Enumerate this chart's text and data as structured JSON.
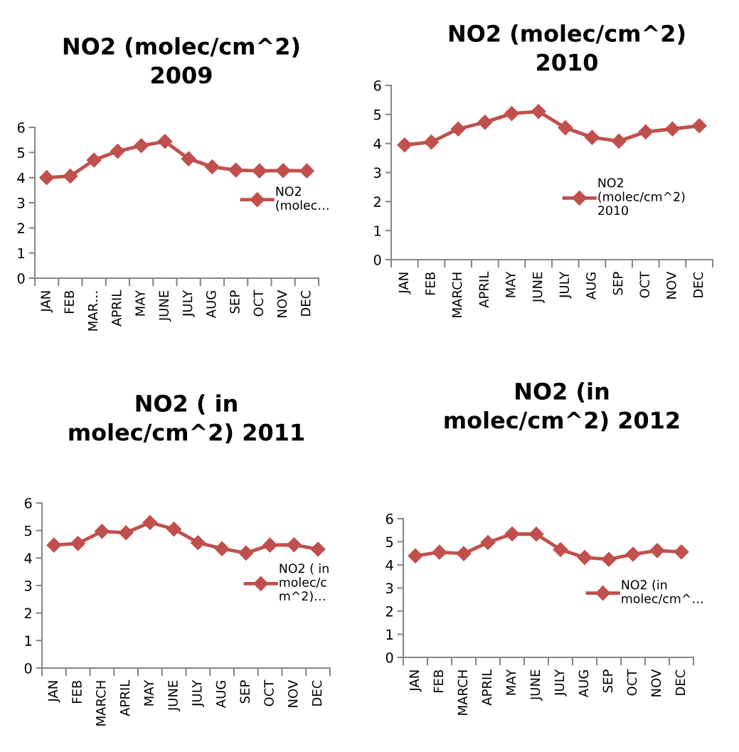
{
  "chart_data": [
    {
      "type": "line",
      "title": "NO2 (molec/cm^2)\n2009",
      "categories": [
        "JAN",
        "FEB",
        "MAR…",
        "APRIL",
        "MAY",
        "JUNE",
        "JULY",
        "AUG",
        "SEP",
        "OCT",
        "NOV",
        "DEC"
      ],
      "series": [
        {
          "name": "NO2\n(molec…",
          "color": "#c0504d",
          "values": [
            4.0,
            4.06,
            4.7,
            5.05,
            5.27,
            5.44,
            4.75,
            4.43,
            4.3,
            4.27,
            4.28,
            4.27
          ]
        }
      ],
      "ylim": [
        0,
        6
      ],
      "yticks": [
        0,
        1,
        2,
        3,
        4,
        5,
        6
      ],
      "legend": "right",
      "marker": "diamond",
      "line_style": "solid",
      "grid": false
    },
    {
      "type": "line",
      "title": "NO2 (molec/cm^2)\n2010",
      "categories": [
        "JAN",
        "FEB",
        "MARCH",
        "APRIL",
        "MAY",
        "JUNE",
        "JULY",
        "AUG",
        "SEP",
        "OCT",
        "NOV",
        "DEC"
      ],
      "series": [
        {
          "name": "NO2\n(molec/cm^2)\n2010",
          "color": "#c0504d",
          "values": [
            3.95,
            4.05,
            4.5,
            4.73,
            5.03,
            5.1,
            4.54,
            4.21,
            4.08,
            4.4,
            4.5,
            4.61
          ]
        }
      ],
      "ylim": [
        0,
        6
      ],
      "yticks": [
        0,
        1,
        2,
        3,
        4,
        5,
        6
      ],
      "legend": "right",
      "marker": "diamond",
      "line_style": "solid",
      "grid": false
    },
    {
      "type": "line",
      "title": "NO2 ( in\nmolec/cm^2) 2011",
      "categories": [
        "JAN",
        "FEB",
        "MARCH",
        "APRIL",
        "MAY",
        "JUNE",
        "JULY",
        "AUG",
        "SEP",
        "OCT",
        "NOV",
        "DEC"
      ],
      "series": [
        {
          "name": "NO2 ( in\nmolec/c\nm^2)…",
          "color": "#c0504d",
          "values": [
            4.47,
            4.53,
            4.97,
            4.92,
            5.29,
            5.05,
            4.56,
            4.34,
            4.18,
            4.47,
            4.48,
            4.32
          ]
        }
      ],
      "ylim": [
        0,
        6
      ],
      "yticks": [
        0,
        1,
        2,
        3,
        4,
        5,
        6
      ],
      "legend": "right",
      "marker": "diamond",
      "line_style": "solid",
      "grid": false
    },
    {
      "type": "line",
      "title": "NO2 (in\nmolec/cm^2) 2012",
      "categories": [
        "JAN",
        "FEB",
        "MARCH",
        "APRIL",
        "MAY",
        "JUNE",
        "JULY",
        "AUG",
        "SEP",
        "OCT",
        "NOV",
        "DEC"
      ],
      "series": [
        {
          "name": "NO2 (in\nmolec/cm^…",
          "color": "#c0504d",
          "values": [
            4.39,
            4.55,
            4.49,
            4.97,
            5.34,
            5.33,
            4.66,
            4.32,
            4.24,
            4.46,
            4.62,
            4.56
          ]
        }
      ],
      "ylim": [
        0,
        6
      ],
      "yticks": [
        0,
        1,
        2,
        3,
        4,
        5,
        6
      ],
      "legend": "right",
      "marker": "diamond",
      "line_style": "solid",
      "grid": false
    }
  ]
}
